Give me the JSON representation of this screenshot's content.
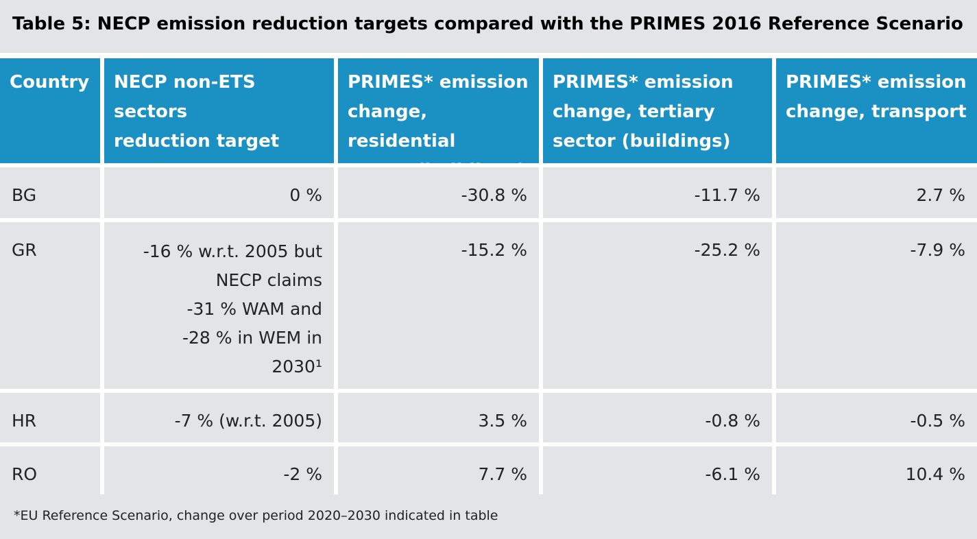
{
  "title": "Table 5: NECP emission reduction targets compared with the PRIMES 2016 Reference Scenario",
  "headers": [
    "Country",
    "NECP non-ETS sectors\nreduction target",
    "PRIMES* emission\nchange, residential\nsector (buildings)",
    "PRIMES* emission\nchange, tertiary\n sector (buildings)",
    "PRIMES* emission\nchange, transport"
  ],
  "rows": [
    [
      "BG",
      "0 %",
      "-30.8 %",
      "-11.7 %",
      "2.7 %"
    ],
    [
      "GR",
      "",
      "-15.2 %",
      "-25.2 %",
      "-7.9 %"
    ],
    [
      "HR",
      "-7 % (w.r.t. 2005)",
      "3.5 %",
      "-0.8 %",
      "-0.5 %"
    ],
    [
      "RO",
      "-2 %",
      "7.7 %",
      "-6.1 %",
      "10.4 %"
    ]
  ],
  "gr_target_lines": [
    "-16 % w.r.t. 2005 but",
    "NECP claims",
    "-31 % WAM and",
    "-28 % in WEM in",
    "2030¹"
  ],
  "footnote": "*EU Reference Scenario, change over period 2020–2030 indicated in table"
}
